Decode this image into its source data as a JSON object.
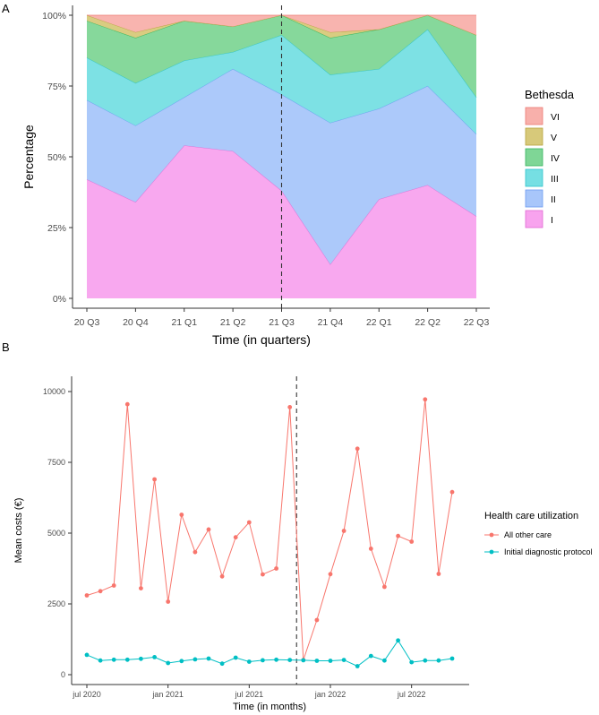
{
  "chart_data": [
    {
      "panel": "A",
      "type": "area",
      "stacked": true,
      "categories": [
        "20 Q3",
        "20 Q4",
        "21 Q1",
        "21 Q2",
        "21 Q3",
        "21 Q4",
        "22 Q1",
        "22 Q2",
        "22 Q3"
      ],
      "xlabel": "Time (in quarters)",
      "ylabel": "Percentage",
      "yticks": [
        "0%",
        "25%",
        "50%",
        "75%",
        "100%"
      ],
      "ylim": [
        0,
        100
      ],
      "vline_category": "21 Q3",
      "legend_title": "Bethesda",
      "legend_position": "right",
      "series": [
        {
          "name": "I",
          "color": "#f8a3ee",
          "line": "#e06ad3",
          "values": [
            42,
            34,
            54,
            52,
            38,
            12,
            35,
            40,
            29
          ]
        },
        {
          "name": "II",
          "color": "#a8c6fa",
          "line": "#6d9bf0",
          "values": [
            28,
            27,
            17,
            29,
            34,
            50,
            32,
            35,
            29
          ]
        },
        {
          "name": "III",
          "color": "#76dfe3",
          "line": "#30c3cb",
          "values": [
            15,
            15,
            13,
            6,
            21,
            17,
            14,
            20,
            13
          ]
        },
        {
          "name": "IV",
          "color": "#7fd696",
          "line": "#37b55e",
          "values": [
            13,
            16,
            14,
            9,
            7,
            13,
            14,
            5,
            22
          ]
        },
        {
          "name": "V",
          "color": "#d7c97a",
          "line": "#b7a33c",
          "values": [
            2,
            2,
            0,
            0,
            0,
            2,
            0,
            0,
            0
          ]
        },
        {
          "name": "VI",
          "color": "#f8b0ab",
          "line": "#ec7b74",
          "values": [
            0,
            6,
            2,
            4,
            0,
            6,
            5,
            0,
            7
          ]
        }
      ]
    },
    {
      "panel": "B",
      "type": "line",
      "xlabel": "Time (in months)",
      "ylabel": "Mean costs (€)",
      "xticks": [
        "jul 2020",
        "jan 2021",
        "jul 2021",
        "jan 2022",
        "jul 2022"
      ],
      "yticks": [
        "0",
        "2500",
        "5000",
        "7500",
        "10000"
      ],
      "ylim": [
        -400,
        10400
      ],
      "months_total": 28,
      "vline_month_index": 15.5,
      "legend_title": "Health care utilization",
      "legend_position": "right",
      "series": [
        {
          "name": "All other care",
          "color": "#f8766d",
          "values": [
            2800,
            2950,
            3150,
            9550,
            3050,
            6900,
            2580,
            5650,
            4330,
            5130,
            3470,
            4850,
            5380,
            3540,
            3750,
            9450,
            520,
            1930,
            3550,
            5080,
            7980,
            4450,
            3100,
            4900,
            4700,
            9720,
            3560,
            6450
          ]
        },
        {
          "name": "Initial diagnostic protocol",
          "color": "#00bfc4",
          "values": [
            700,
            500,
            530,
            530,
            560,
            620,
            410,
            480,
            540,
            570,
            390,
            600,
            460,
            510,
            530,
            520,
            510,
            490,
            490,
            520,
            300,
            660,
            500,
            1210,
            440,
            500,
            500,
            570
          ]
        }
      ]
    }
  ]
}
